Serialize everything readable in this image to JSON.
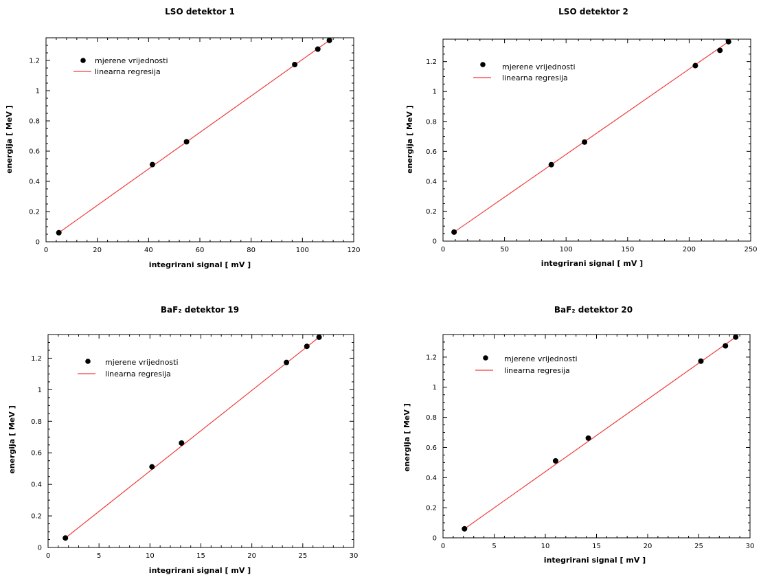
{
  "chart_data": [
    {
      "type": "scatter",
      "title": "LSO detektor 1",
      "xlabel": "integrirani signal  [ mV ]",
      "ylabel": "energija [ MeV ]",
      "xlim": [
        0,
        120
      ],
      "ylim": [
        0,
        1.35
      ],
      "xticks": [
        0,
        20,
        40,
        60,
        80,
        100,
        120
      ],
      "xtick_labels": [
        "0",
        "20",
        "40",
        "60",
        "80",
        "100",
        "120"
      ],
      "yticks": [
        0,
        0.2,
        0.4,
        0.6,
        0.8,
        1.0,
        1.2
      ],
      "ytick_labels": [
        "0",
        "0.2",
        "0.4",
        "0.6",
        "0.8",
        "1",
        "1.2"
      ],
      "grid": false,
      "legend_position": "top-left",
      "points": {
        "name": "mjerene vrijednosti",
        "x": [
          5,
          41.5,
          54.8,
          97,
          106,
          110.5
        ],
        "y": [
          0.06,
          0.511,
          0.662,
          1.173,
          1.275,
          1.333
        ]
      },
      "fit": {
        "name": "linearna regresija",
        "x": [
          5,
          110.5
        ],
        "y": [
          0.06,
          1.333
        ]
      }
    },
    {
      "type": "scatter",
      "title": "LSO detektor 2",
      "xlabel": "integrirani signal  [ mV ]",
      "ylabel": "energija [ MeV ]",
      "xlim": [
        0,
        250
      ],
      "ylim": [
        0,
        1.35
      ],
      "xticks": [
        0,
        50,
        100,
        150,
        200,
        250
      ],
      "xtick_labels": [
        "0",
        "50",
        "100",
        "150",
        "200",
        "250"
      ],
      "yticks": [
        0,
        0.2,
        0.4,
        0.6,
        0.8,
        1.0,
        1.2
      ],
      "ytick_labels": [
        "0",
        "0.2",
        "0.4",
        "0.6",
        "0.8",
        "1",
        "1.2"
      ],
      "grid": false,
      "legend_position": "top-left",
      "points": {
        "name": "mjerene vrijednosti",
        "x": [
          9,
          88,
          115,
          205,
          225,
          232
        ],
        "y": [
          0.06,
          0.511,
          0.662,
          1.173,
          1.275,
          1.333
        ]
      },
      "fit": {
        "name": "linearna regresija",
        "x": [
          9,
          232
        ],
        "y": [
          0.06,
          1.333
        ]
      }
    },
    {
      "type": "scatter",
      "title": "BaF₂ detektor 19",
      "xlabel": "integrirani signal  [ mV ]",
      "ylabel": "energija [ MeV ]",
      "xlim": [
        0,
        30
      ],
      "ylim": [
        0,
        1.35
      ],
      "xticks": [
        0,
        5,
        10,
        15,
        20,
        25,
        30
      ],
      "xtick_labels": [
        "0",
        "5",
        "10",
        "15",
        "20",
        "25",
        "30"
      ],
      "yticks": [
        0,
        0.2,
        0.4,
        0.6,
        0.8,
        1.0,
        1.2
      ],
      "ytick_labels": [
        "0",
        "0.2",
        "0.4",
        "0.6",
        "0.8",
        "1",
        "1.2"
      ],
      "grid": false,
      "legend_position": "top-left",
      "points": {
        "name": "mjerene vrijednosti",
        "x": [
          1.7,
          10.2,
          13.1,
          23.4,
          25.4,
          26.6
        ],
        "y": [
          0.06,
          0.511,
          0.662,
          1.173,
          1.275,
          1.333
        ]
      },
      "fit": {
        "name": "linearna regresija",
        "x": [
          1.7,
          26.6
        ],
        "y": [
          0.06,
          1.333
        ]
      }
    },
    {
      "type": "scatter",
      "title": "BaF₂ detektor 20",
      "xlabel": "integrirani signal  [ mV ]",
      "ylabel": "energija [ MeV ]",
      "xlim": [
        0,
        30
      ],
      "ylim": [
        0,
        1.35
      ],
      "xticks": [
        0,
        5,
        10,
        15,
        20,
        25,
        30
      ],
      "xtick_labels": [
        "0",
        "5",
        "10",
        "15",
        "20",
        "25",
        "30"
      ],
      "yticks": [
        0,
        0.2,
        0.4,
        0.6,
        0.8,
        1.0,
        1.2
      ],
      "ytick_labels": [
        "0",
        "0.2",
        "0.4",
        "0.6",
        "0.8",
        "1",
        "1.2"
      ],
      "grid": false,
      "legend_position": "top-left",
      "points": {
        "name": "mjerene vrijednosti",
        "x": [
          2.1,
          11,
          14.2,
          25.2,
          27.6,
          28.6
        ],
        "y": [
          0.06,
          0.511,
          0.662,
          1.173,
          1.275,
          1.333
        ]
      },
      "fit": {
        "name": "linearna regresija",
        "x": [
          2.1,
          28.6
        ],
        "y": [
          0.06,
          1.333
        ]
      }
    }
  ],
  "colors": {
    "points": "#000000",
    "fit_line": "#f03c3c",
    "frame": "#000000"
  }
}
